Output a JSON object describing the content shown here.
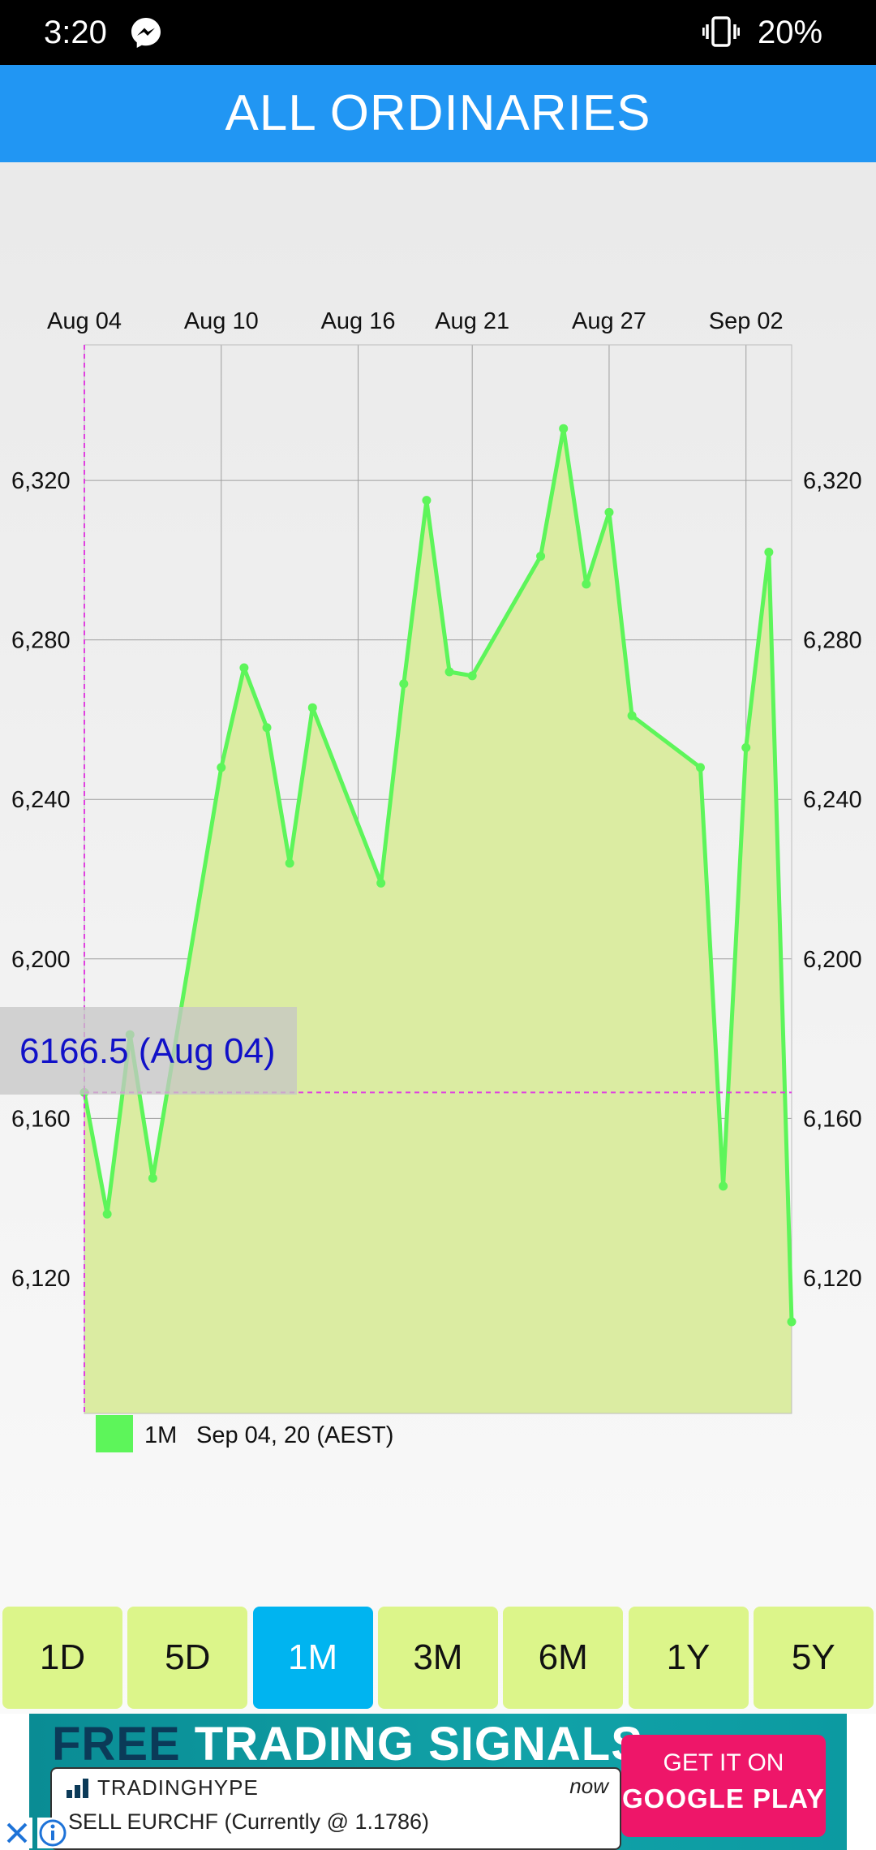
{
  "status_bar": {
    "time": "3:20",
    "battery": "20%",
    "icons": [
      "messenger-icon",
      "vibrate-icon"
    ]
  },
  "app_bar": {
    "title": "ALL ORDINARIES"
  },
  "colors": {
    "app_bar": "#2196f3",
    "line": "#5df55a",
    "area_fill": "#dbeca2",
    "range_button": "#dcf58a",
    "range_button_active": "#00b4f0",
    "highlight_text": "#1111c8",
    "crosshair": "#e040e0"
  },
  "chart_data": {
    "type": "area",
    "x": [
      "Aug 04",
      "Aug 05",
      "Aug 06",
      "Aug 07",
      "Aug 10",
      "Aug 11",
      "Aug 12",
      "Aug 13",
      "Aug 14",
      "Aug 17",
      "Aug 18",
      "Aug 19",
      "Aug 20",
      "Aug 21",
      "Aug 24",
      "Aug 25",
      "Aug 26",
      "Aug 27",
      "Aug 28",
      "Aug 31",
      "Sep 01",
      "Sep 02",
      "Sep 03",
      "Sep 04"
    ],
    "x_pos": [
      0,
      1,
      2,
      3,
      6,
      7,
      8,
      9,
      10,
      13,
      14,
      15,
      16,
      17,
      20,
      21,
      22,
      23,
      24,
      27,
      28,
      29,
      30,
      31
    ],
    "values": [
      6166.5,
      6136,
      6181,
      6145,
      6248,
      6273,
      6258,
      6224,
      6263,
      6219,
      6269,
      6315,
      6272,
      6271,
      6301,
      6333,
      6294,
      6312,
      6261,
      6248,
      6143,
      6253,
      6302,
      6109
    ],
    "x_tick_labels": [
      "Aug 04",
      "Aug 10",
      "Aug 16",
      "Aug 21",
      "Aug 27",
      "Sep 02"
    ],
    "x_tick_pos": [
      0,
      6,
      12,
      17,
      23,
      29
    ],
    "y_ticks": [
      6120,
      6160,
      6200,
      6240,
      6280,
      6320
    ],
    "y_tick_labels": [
      "6,120",
      "6,160",
      "6,200",
      "6,240",
      "6,280",
      "6,320"
    ],
    "ylim": [
      6086,
      6354
    ],
    "grid": true,
    "legend": [
      {
        "label": "1M",
        "note": "Sep 04, 20 (AEST)"
      }
    ],
    "highlight": {
      "value": 6166.5,
      "label": "6166.5 (Aug 04)"
    }
  },
  "range_buttons": {
    "items": [
      {
        "label": "1D",
        "active": false
      },
      {
        "label": "5D",
        "active": false
      },
      {
        "label": "1M",
        "active": true
      },
      {
        "label": "3M",
        "active": false
      },
      {
        "label": "6M",
        "active": false
      },
      {
        "label": "1Y",
        "active": false
      },
      {
        "label": "5Y",
        "active": false
      }
    ]
  },
  "ad": {
    "title_free": "FREE",
    "title_rest": " TRADING SIGNALS",
    "source": "TRADINGHYPE",
    "when": "now",
    "message": "SELL EURCHF (Currently @ 1.1786)",
    "cta_line1": "GET IT ON",
    "cta_line2": "GOOGLE PLAY"
  }
}
